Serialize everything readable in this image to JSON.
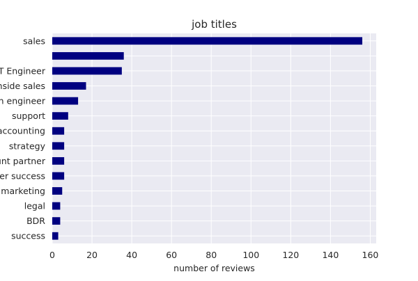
{
  "chart_data": {
    "type": "bar",
    "orientation": "horizontal",
    "title": "job titles",
    "xlabel": "number of reviews",
    "ylabel": "",
    "categories": [
      "sales",
      "",
      "T Engineer",
      "nside sales",
      "n engineer",
      "support",
      "accounting",
      "strategy",
      "unt partner",
      "er success",
      "marketing",
      "legal",
      "BDR",
      "success"
    ],
    "values": [
      156,
      36,
      35,
      17,
      13,
      8,
      6,
      6,
      6,
      6,
      5,
      4,
      4,
      3
    ],
    "xlim": [
      0,
      163
    ],
    "xticks": [
      0,
      20,
      40,
      60,
      80,
      100,
      120,
      140,
      160
    ],
    "grid": true,
    "legend": "none",
    "colors": {
      "bar": "#000080",
      "plot_background": "#eaeaf2",
      "grid": "#ffffff",
      "text": "#262626"
    }
  }
}
